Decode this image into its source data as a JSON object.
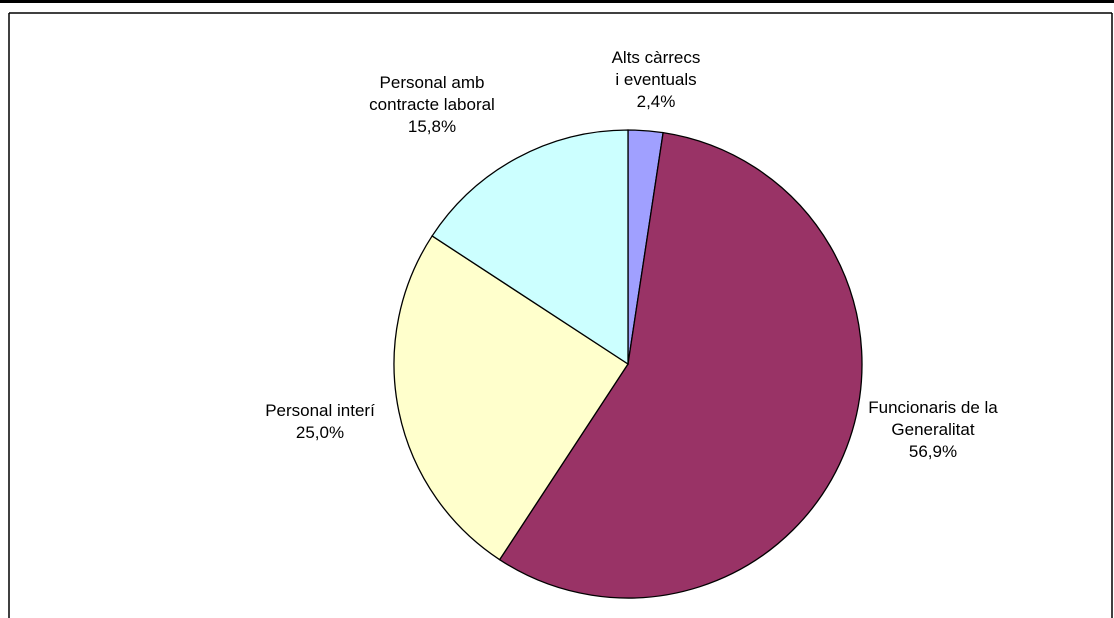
{
  "chart_data": {
    "type": "pie",
    "title": "",
    "slices": [
      {
        "label_lines": [
          "Alts càrrecs",
          "i eventuals"
        ],
        "value_text": "2,4%",
        "value": 2.4,
        "color": "#a0a0ff"
      },
      {
        "label_lines": [
          "Funcionaris de la",
          "Generalitat"
        ],
        "value_text": "56,9%",
        "value": 56.9,
        "color": "#993366"
      },
      {
        "label_lines": [
          "Personal interí"
        ],
        "value_text": "25,0%",
        "value": 25.0,
        "color": "#ffffcc"
      },
      {
        "label_lines": [
          "Personal amb",
          "contracte laboral"
        ],
        "value_text": "15,8%",
        "value": 15.8,
        "color": "#ccffff"
      }
    ]
  }
}
